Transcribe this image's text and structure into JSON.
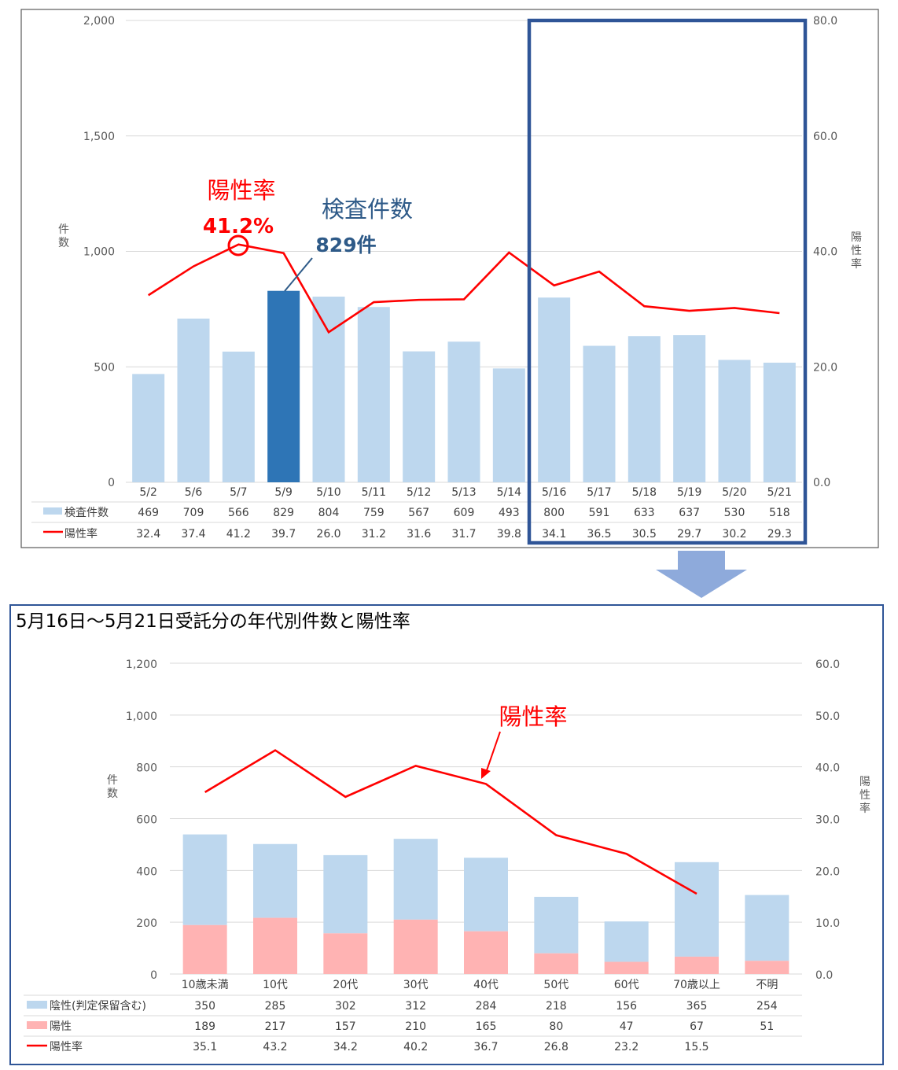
{
  "chart_data": [
    {
      "type": "bar",
      "y_left_ticks": [
        "0",
        "500",
        "1,000",
        "1,500",
        "2,000"
      ],
      "y_right_ticks": [
        "0.0",
        "20.0",
        "40.0",
        "60.0",
        "80.0"
      ],
      "ylim": [
        0,
        2000
      ],
      "y2lim": [
        0,
        80
      ],
      "ylabel": "件数",
      "y2label": "陽性率",
      "categories": [
        "5/2",
        "5/6",
        "5/7",
        "5/9",
        "5/10",
        "5/11",
        "5/12",
        "5/13",
        "5/14",
        "5/16",
        "5/17",
        "5/18",
        "5/19",
        "5/20",
        "5/21"
      ],
      "series": [
        {
          "name": "検査件数",
          "kind": "bar",
          "color": "#bdd7ee",
          "highlight_color": "#2e75b6",
          "highlight_index": 3,
          "values": [
            469,
            709,
            566,
            829,
            804,
            759,
            567,
            609,
            493,
            800,
            591,
            633,
            637,
            530,
            518
          ]
        },
        {
          "name": "陽性率",
          "kind": "line",
          "axis": "right",
          "color": "#ff0000",
          "values": [
            32.4,
            37.4,
            41.2,
            39.7,
            26.0,
            31.2,
            31.6,
            31.7,
            39.8,
            34.1,
            36.5,
            30.5,
            29.7,
            30.2,
            29.3
          ]
        }
      ],
      "annotations": {
        "rate_title": "陽性率",
        "rate_value": "41.2%",
        "count_title": "検査件数",
        "count_value": "829件"
      },
      "highlight_box_color": "#2f5597"
    },
    {
      "type": "bar",
      "title": "5月16日～5月21日受託分の年代別件数と陽性率",
      "y_left_ticks": [
        "0",
        "200",
        "400",
        "600",
        "800",
        "1,000",
        "1,200"
      ],
      "y_right_ticks": [
        "0.0",
        "10.0",
        "20.0",
        "30.0",
        "40.0",
        "50.0",
        "60.0"
      ],
      "ylim": [
        0,
        1200
      ],
      "y2lim": [
        0,
        60
      ],
      "ylabel": "件数",
      "y2label": "陽性率",
      "categories": [
        "10歳未満",
        "10代",
        "20代",
        "30代",
        "40代",
        "50代",
        "60代",
        "70歳以上",
        "不明"
      ],
      "series": [
        {
          "name": "陰性(判定保留含む)",
          "kind": "stacked-bar",
          "color": "#bdd7ee",
          "values": [
            350,
            285,
            302,
            312,
            284,
            218,
            156,
            365,
            254
          ]
        },
        {
          "name": "陽性",
          "kind": "stacked-bar",
          "color": "#ffb3b3",
          "values": [
            189,
            217,
            157,
            210,
            165,
            80,
            47,
            67,
            51
          ]
        },
        {
          "name": "陽性率",
          "kind": "line",
          "axis": "right",
          "color": "#ff0000",
          "values": [
            35.1,
            43.2,
            34.2,
            40.2,
            36.7,
            26.8,
            23.2,
            15.5,
            null
          ]
        }
      ],
      "annotations": {
        "rate_label": "陽性率"
      }
    }
  ],
  "colors": {
    "panel_border": "#595959",
    "bottom_border": "#2f5597",
    "arrow": "#8eaadb",
    "grid": "#d9d9d9"
  }
}
